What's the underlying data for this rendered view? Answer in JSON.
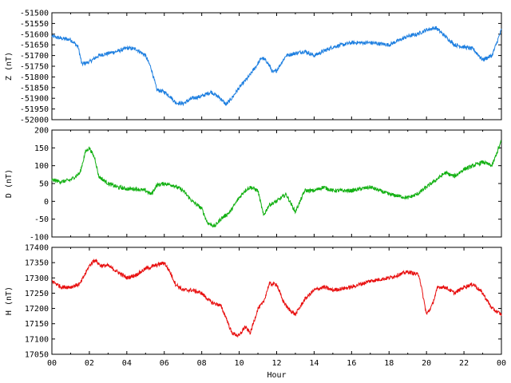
{
  "chart_data": [
    {
      "type": "line",
      "ylabel": "Z (nT)",
      "ylim": [
        -52000,
        -51500
      ],
      "yticks": [
        -51500,
        -51550,
        -51600,
        -51650,
        -51700,
        -51750,
        -51800,
        -51850,
        -51900,
        -51950,
        -52000
      ],
      "xlim": [
        0,
        24
      ],
      "grid": false,
      "series": [
        {
          "color": "#1e7fe0",
          "x": [
            0,
            0.5,
            1.0,
            1.4,
            1.6,
            2.0,
            2.5,
            3.0,
            3.5,
            4.0,
            4.5,
            5.0,
            5.3,
            5.6,
            6.0,
            6.3,
            6.6,
            7.0,
            7.5,
            8.0,
            8.5,
            9.0,
            9.3,
            9.6,
            10.0,
            10.5,
            10.9,
            11.2,
            11.5,
            11.8,
            12.0,
            12.5,
            13.0,
            13.5,
            14.0,
            14.5,
            15.0,
            16.0,
            17.0,
            18.0,
            19.0,
            19.5,
            20.0,
            20.5,
            21.0,
            21.5,
            22.0,
            22.5,
            23.0,
            23.5,
            24.0
          ],
          "y": [
            -51610,
            -51620,
            -51625,
            -51660,
            -51740,
            -51730,
            -51700,
            -51690,
            -51680,
            -51665,
            -51670,
            -51700,
            -51760,
            -51860,
            -51870,
            -51890,
            -51920,
            -51925,
            -51900,
            -51890,
            -51870,
            -51900,
            -51930,
            -51900,
            -51850,
            -51800,
            -51750,
            -51710,
            -51730,
            -51780,
            -51770,
            -51700,
            -51690,
            -51680,
            -51700,
            -51680,
            -51660,
            -51640,
            -51640,
            -51650,
            -51610,
            -51600,
            -51580,
            -51570,
            -51610,
            -51650,
            -51660,
            -51670,
            -51720,
            -51700,
            -51580
          ]
        }
      ]
    },
    {
      "type": "line",
      "ylabel": "D (nT)",
      "ylim": [
        -100,
        200
      ],
      "yticks": [
        200,
        150,
        100,
        50,
        0,
        -50,
        -100
      ],
      "xlim": [
        0,
        24
      ],
      "grid": false,
      "series": [
        {
          "color": "#12b012",
          "x": [
            0,
            0.5,
            1.0,
            1.5,
            1.8,
            2.0,
            2.3,
            2.5,
            3.0,
            3.5,
            4.0,
            4.5,
            5.0,
            5.3,
            5.6,
            6.0,
            6.5,
            7.0,
            7.5,
            8.0,
            8.3,
            8.7,
            9.0,
            9.5,
            10.0,
            10.3,
            10.6,
            11.0,
            11.3,
            11.6,
            12.0,
            12.5,
            13.0,
            13.5,
            14.0,
            14.5,
            15.0,
            16.0,
            17.0,
            18.0,
            19.0,
            19.5,
            20.0,
            20.5,
            21.0,
            21.5,
            22.0,
            22.5,
            23.0,
            23.5,
            24.0
          ],
          "y": [
            60,
            55,
            60,
            80,
            140,
            150,
            120,
            70,
            50,
            40,
            35,
            35,
            30,
            20,
            45,
            50,
            45,
            30,
            0,
            -20,
            -60,
            -70,
            -50,
            -30,
            10,
            30,
            40,
            30,
            -40,
            -10,
            0,
            20,
            -30,
            30,
            30,
            40,
            30,
            30,
            40,
            20,
            10,
            20,
            40,
            60,
            80,
            70,
            90,
            100,
            110,
            100,
            170
          ]
        }
      ]
    },
    {
      "type": "line",
      "ylabel": "H (nT)",
      "xlabel": "Hour",
      "ylim": [
        17050,
        17400
      ],
      "yticks": [
        17400,
        17350,
        17300,
        17250,
        17200,
        17150,
        17100,
        17050
      ],
      "xlim": [
        0,
        24
      ],
      "xticks": [
        "00",
        "02",
        "04",
        "06",
        "08",
        "10",
        "12",
        "14",
        "16",
        "18",
        "20",
        "22",
        "00"
      ],
      "grid": false,
      "series": [
        {
          "color": "#e81010",
          "x": [
            0,
            0.5,
            1.0,
            1.5,
            2.0,
            2.3,
            2.6,
            3.0,
            3.5,
            4.0,
            4.5,
            5.0,
            5.5,
            6.0,
            6.3,
            6.6,
            7.0,
            7.5,
            8.0,
            8.5,
            9.0,
            9.3,
            9.6,
            10.0,
            10.3,
            10.6,
            11.0,
            11.3,
            11.6,
            12.0,
            12.3,
            12.6,
            13.0,
            13.5,
            14.0,
            14.5,
            15.0,
            16.0,
            17.0,
            18.0,
            19.0,
            19.6,
            20.0,
            20.3,
            20.6,
            21.0,
            21.5,
            22.0,
            22.5,
            23.0,
            23.5,
            24.0
          ],
          "y": [
            17290,
            17270,
            17270,
            17280,
            17340,
            17360,
            17340,
            17340,
            17320,
            17300,
            17310,
            17330,
            17340,
            17350,
            17320,
            17280,
            17260,
            17260,
            17250,
            17220,
            17210,
            17170,
            17120,
            17110,
            17140,
            17120,
            17200,
            17220,
            17280,
            17280,
            17230,
            17200,
            17180,
            17230,
            17260,
            17270,
            17260,
            17270,
            17290,
            17300,
            17320,
            17310,
            17180,
            17210,
            17270,
            17270,
            17250,
            17270,
            17280,
            17250,
            17200,
            17180
          ]
        }
      ]
    }
  ]
}
